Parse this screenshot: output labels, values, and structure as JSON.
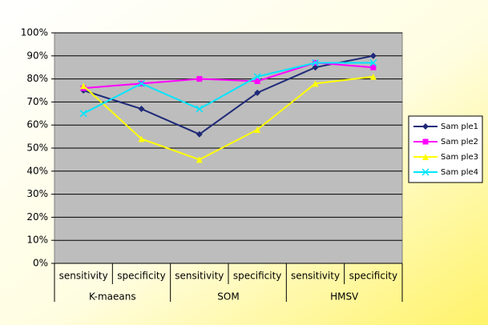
{
  "chart_data": {
    "type": "line",
    "categories": [
      "sensitivity",
      "specificity",
      "sensitivity",
      "specificity",
      "sensitivity",
      "specificity"
    ],
    "category_groups": [
      "K-maeans",
      "SOM",
      "HMSV"
    ],
    "series": [
      {
        "name": "Sam ple1",
        "color": "#1f2a78",
        "marker": "diamond",
        "values": [
          75,
          67,
          56,
          74,
          85,
          90
        ]
      },
      {
        "name": "Sam ple2",
        "color": "#ff00ff",
        "marker": "square",
        "values": [
          76,
          78,
          80,
          79,
          87,
          85
        ]
      },
      {
        "name": "Sam ple3",
        "color": "#ffff00",
        "marker": "triangle",
        "values": [
          77,
          54,
          45,
          58,
          78,
          81
        ]
      },
      {
        "name": "Sam ple4",
        "color": "#00e5ff",
        "marker": "x",
        "values": [
          65,
          78,
          67,
          81,
          87,
          87
        ]
      }
    ],
    "ylim": [
      0,
      100
    ],
    "yticks": [
      {
        "value": 0,
        "label": "0%"
      },
      {
        "value": 10,
        "label": "10%"
      },
      {
        "value": 20,
        "label": "20%"
      },
      {
        "value": 30,
        "label": "30%"
      },
      {
        "value": 40,
        "label": "40%"
      },
      {
        "value": 50,
        "label": "50%"
      },
      {
        "value": 60,
        "label": "60%"
      },
      {
        "value": 70,
        "label": "70%"
      },
      {
        "value": 80,
        "label": "80%"
      },
      {
        "value": 90,
        "label": "90%"
      },
      {
        "value": 100,
        "label": "100%"
      }
    ],
    "grid": true,
    "legend": "right"
  }
}
